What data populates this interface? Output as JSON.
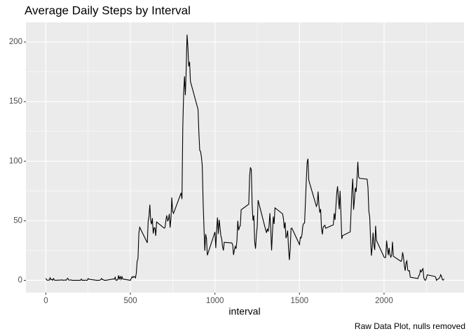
{
  "chart_data": {
    "type": "line",
    "title": "Average Daily Steps by Interval",
    "x_label": "interval",
    "caption": "Raw Data Plot, nulls removed",
    "x": [
      0,
      5,
      10,
      15,
      20,
      25,
      30,
      35,
      40,
      45,
      50,
      55,
      100,
      105,
      110,
      115,
      120,
      125,
      130,
      135,
      140,
      145,
      150,
      155,
      200,
      205,
      210,
      215,
      220,
      225,
      230,
      235,
      240,
      245,
      250,
      255,
      300,
      305,
      310,
      315,
      320,
      325,
      330,
      335,
      340,
      345,
      350,
      355,
      400,
      405,
      410,
      415,
      420,
      425,
      430,
      435,
      440,
      445,
      450,
      455,
      500,
      505,
      510,
      515,
      520,
      525,
      530,
      535,
      540,
      545,
      550,
      555,
      600,
      605,
      610,
      615,
      620,
      625,
      630,
      635,
      640,
      645,
      650,
      655,
      700,
      705,
      710,
      715,
      720,
      725,
      730,
      735,
      740,
      745,
      750,
      755,
      800,
      805,
      810,
      815,
      820,
      825,
      830,
      835,
      840,
      845,
      850,
      855,
      900,
      905,
      910,
      915,
      920,
      925,
      930,
      935,
      940,
      945,
      950,
      955,
      1000,
      1005,
      1010,
      1015,
      1020,
      1025,
      1030,
      1035,
      1040,
      1045,
      1050,
      1055,
      1100,
      1105,
      1110,
      1115,
      1120,
      1125,
      1130,
      1135,
      1140,
      1145,
      1150,
      1155,
      1200,
      1205,
      1210,
      1215,
      1220,
      1225,
      1230,
      1235,
      1240,
      1245,
      1250,
      1255,
      1300,
      1305,
      1310,
      1315,
      1320,
      1325,
      1330,
      1335,
      1340,
      1345,
      1350,
      1355,
      1400,
      1405,
      1410,
      1415,
      1420,
      1425,
      1430,
      1435,
      1440,
      1445,
      1450,
      1455,
      1500,
      1505,
      1510,
      1515,
      1520,
      1525,
      1530,
      1535,
      1540,
      1545,
      1550,
      1555,
      1600,
      1605,
      1610,
      1615,
      1620,
      1625,
      1630,
      1635,
      1640,
      1645,
      1650,
      1655,
      1700,
      1705,
      1710,
      1715,
      1720,
      1725,
      1730,
      1735,
      1740,
      1745,
      1750,
      1755,
      1800,
      1805,
      1810,
      1815,
      1820,
      1825,
      1830,
      1835,
      1840,
      1845,
      1850,
      1855,
      1900,
      1905,
      1910,
      1915,
      1920,
      1925,
      1930,
      1935,
      1940,
      1945,
      1950,
      1955,
      2000,
      2005,
      2010,
      2015,
      2020,
      2025,
      2030,
      2035,
      2040,
      2045,
      2050,
      2055,
      2100,
      2105,
      2110,
      2115,
      2120,
      2125,
      2130,
      2135,
      2140,
      2145,
      2150,
      2155,
      2200,
      2205,
      2210,
      2215,
      2220,
      2225,
      2230,
      2235,
      2240,
      2245,
      2250,
      2255,
      2300,
      2305,
      2310,
      2315,
      2320,
      2325,
      2330,
      2335,
      2340,
      2345,
      2350,
      2355
    ],
    "values": [
      1.7,
      0.3,
      0.1,
      0.2,
      0.1,
      2.1,
      0.5,
      0.9,
      0,
      1.5,
      0.4,
      0,
      0.3,
      0,
      0.2,
      0.3,
      0,
      1.1,
      1.8,
      0.2,
      0.2,
      0.3,
      0.3,
      0,
      0,
      0,
      1.1,
      0,
      0,
      0.1,
      0,
      0.2,
      0,
      0,
      1.5,
      0.9,
      0,
      0,
      0,
      0,
      0.2,
      0.6,
      1.6,
      0.6,
      0.5,
      0.1,
      0,
      0,
      1.2,
      0.9,
      2.6,
      0,
      0.3,
      0.4,
      4.1,
      0.7,
      3.5,
      0.8,
      3.1,
      1.1,
      0,
      1.6,
      3,
      2.2,
      3.3,
      3,
      2.1,
      6.1,
      16,
      18.3,
      39.5,
      44.5,
      31.5,
      49.3,
      53.8,
      63.5,
      50,
      47.1,
      52.2,
      39.3,
      44.1,
      44,
      37.4,
      49,
      43.8,
      44.4,
      50.5,
      54.5,
      49.9,
      51,
      55.7,
      44.3,
      52.3,
      69.5,
      57.8,
      56.2,
      73.4,
      68.2,
      129.4,
      157.5,
      171.2,
      155.4,
      177.3,
      206.2,
      195.9,
      179.6,
      183.4,
      167,
      143.5,
      124,
      109.1,
      108.1,
      103.7,
      96,
      66.2,
      45.2,
      24.8,
      38.8,
      35,
      21.1,
      40.6,
      27,
      42.4,
      52.7,
      38.9,
      50.8,
      44.3,
      37.4,
      34.7,
      28.3,
      25.1,
      31.9,
      31.4,
      29.7,
      21.3,
      25.5,
      28.4,
      26.5,
      33.4,
      50,
      42,
      44.6,
      46,
      59.2,
      63.9,
      87.7,
      94.8,
      92.8,
      63.4,
      50.2,
      54.5,
      32.4,
      26.5,
      37.7,
      45.1,
      67.3,
      42.3,
      39.9,
      43.3,
      41,
      46.2,
      56.4,
      42.8,
      25.1,
      40,
      53.5,
      47.3,
      60.8,
      55.8,
      52,
      43.6,
      48.7,
      35.5,
      37.5,
      41.8,
      27.5,
      17.1,
      26.1,
      43.6,
      43.8,
      30,
      36.1,
      35.5,
      38.8,
      46,
      47.8,
      48.1,
      65.3,
      82.9,
      98.7,
      102.1,
      84,
      62.1,
      64.1,
      74.5,
      63.2,
      56.9,
      59.8,
      43.9,
      38.6,
      44.7,
      45.5,
      46.2,
      43.7,
      46.6,
      56.3,
      50.7,
      61.2,
      72.7,
      78.9,
      68.9,
      59.7,
      75.1,
      56.5,
      34.8,
      37.5,
      40.7,
      58,
      74.7,
      85.3,
      59.3,
      67.8,
      77.7,
      74.2,
      85.3,
      99.5,
      86.6,
      85.6,
      84.9,
      77.8,
      58,
      53.4,
      36.3,
      20.7,
      27.4,
      40,
      30.2,
      25.5,
      45.7,
      33.5,
      19.6,
      19,
      19.3,
      33.3,
      26.8,
      21.2,
      27.3,
      21.3,
      19.5,
      21.3,
      32.3,
      20.2,
      15.9,
      17.2,
      23.5,
      19.2,
      12.5,
      8,
      14.7,
      16.3,
      8.7,
      7.8,
      8.1,
      2.6,
      1.5,
      3.7,
      4.8,
      8.5,
      7.1,
      8.7,
      9.8,
      2.2,
      0.3,
      0.1,
      1.6,
      4.6,
      3.3,
      2.8,
      0,
      0.8,
      1,
      1.6,
      2.6,
      4.7,
      3.3,
      0.6,
      0.2,
      1.1
    ],
    "color": "#000000",
    "xlim": [
      -117.75,
      2472.75
    ],
    "ylim": [
      -10.3,
      216.5
    ],
    "xticks": [
      0,
      500,
      1000,
      1500,
      2000
    ],
    "yticks": [
      0,
      50,
      100,
      150,
      200
    ],
    "xminorticks": [
      250,
      750,
      1250,
      1750,
      2250
    ],
    "yminorticks": [
      25,
      75,
      125,
      175
    ],
    "grid": true
  }
}
